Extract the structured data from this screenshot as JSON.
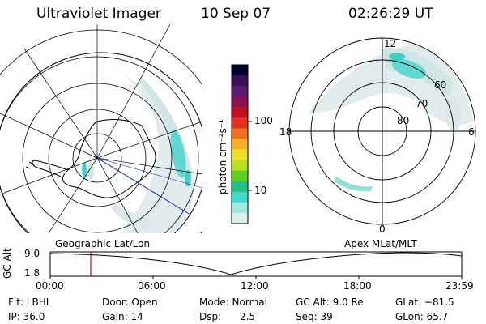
{
  "header": {
    "title": "Ultraviolet Imager",
    "date": "10 Sep 07",
    "time": "02:26:29 UT"
  },
  "colorbar": {
    "unit_label": "photon cm⁻²s⁻¹",
    "ticks": [
      "100",
      "10"
    ],
    "colors": [
      "#000033",
      "#3a1055",
      "#5a1a70",
      "#8a1050",
      "#c01020",
      "#e83020",
      "#f07020",
      "#f8b020",
      "#f0e020",
      "#b8e020",
      "#60d020",
      "#20c080",
      "#40d8d0",
      "#a0e8e0",
      "#dceeee"
    ]
  },
  "left_map": {
    "title": "Geographic Lat/Lon"
  },
  "right_map": {
    "title": "Apex MLat/MLT",
    "mlt_labels": {
      "top": "12",
      "left": "18",
      "right": "6",
      "bottom": "0"
    },
    "lat_labels": [
      "60",
      "70",
      "80"
    ]
  },
  "altitude_plot": {
    "axis_label": "GC Alt",
    "y_ticks": [
      "9.0",
      "1.8"
    ],
    "x_ticks": [
      "00:00",
      "06:00",
      "12:00",
      "18:00",
      "23:59"
    ],
    "marker_color": "#e00000"
  },
  "footer": {
    "filter": "Flt: LBHL",
    "door": "Door: Open",
    "mode": "Mode: Normal",
    "gc_alt": "GC Alt: 9.0 Re",
    "glat": "GLat: −81.5",
    "ip": "IP: 36.0",
    "gain": "Gain: 14",
    "dsp_label": "Dsp:",
    "dsp_value": "2.5",
    "seq": "Seq: 39",
    "glon": "GLon:  65.7"
  }
}
